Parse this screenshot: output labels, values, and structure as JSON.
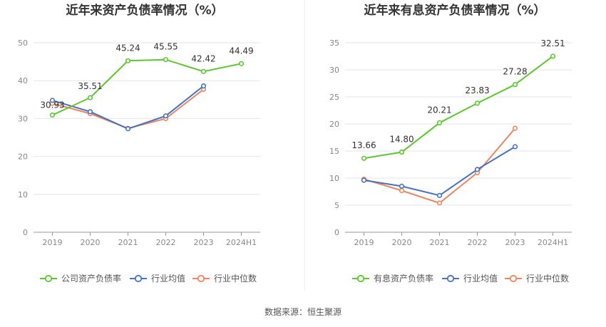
{
  "source": "数据来源：恒生聚源",
  "chart_data": [
    {
      "type": "line",
      "title": "近年来资产负债率情况（%）",
      "categories": [
        "2019",
        "2020",
        "2021",
        "2022",
        "2023",
        "2024H1"
      ],
      "ylim": [
        0,
        50
      ],
      "yticks": [
        0,
        10,
        20,
        30,
        40,
        50
      ],
      "grid": true,
      "legend": "bottom",
      "series": [
        {
          "name": "公司资产负债率",
          "color": "#5bc72d",
          "values": [
            30.93,
            35.51,
            45.24,
            45.55,
            42.42,
            44.49
          ],
          "labels": [
            "30.93",
            "35.51",
            "45.24",
            "45.55",
            "42.42",
            "44.49"
          ]
        },
        {
          "name": "行业均值",
          "color": "#4472c4",
          "values": [
            34.8,
            31.8,
            27.3,
            30.7,
            38.6,
            null
          ]
        },
        {
          "name": "行业中位数",
          "color": "#f0845c",
          "values": [
            34.0,
            31.3,
            27.4,
            30.0,
            37.7,
            null
          ]
        }
      ]
    },
    {
      "type": "line",
      "title": "近年来有息资产负债率情况（%）",
      "categories": [
        "2019",
        "2020",
        "2021",
        "2022",
        "2023",
        "2024H1"
      ],
      "ylim": [
        0,
        35
      ],
      "yticks": [
        0,
        5,
        10,
        15,
        20,
        25,
        30,
        35
      ],
      "grid": true,
      "legend": "bottom",
      "series": [
        {
          "name": "有息资产负债率",
          "color": "#5bc72d",
          "values": [
            13.66,
            14.8,
            20.21,
            23.83,
            27.28,
            32.51
          ],
          "labels": [
            "13.66",
            "14.80",
            "20.21",
            "23.83",
            "27.28",
            "32.51"
          ]
        },
        {
          "name": "行业均值",
          "color": "#4472c4",
          "values": [
            9.6,
            8.5,
            6.8,
            11.6,
            15.8,
            null
          ]
        },
        {
          "name": "行业中位数",
          "color": "#f0845c",
          "values": [
            9.8,
            7.7,
            5.4,
            11.0,
            19.2,
            null
          ]
        }
      ]
    }
  ]
}
